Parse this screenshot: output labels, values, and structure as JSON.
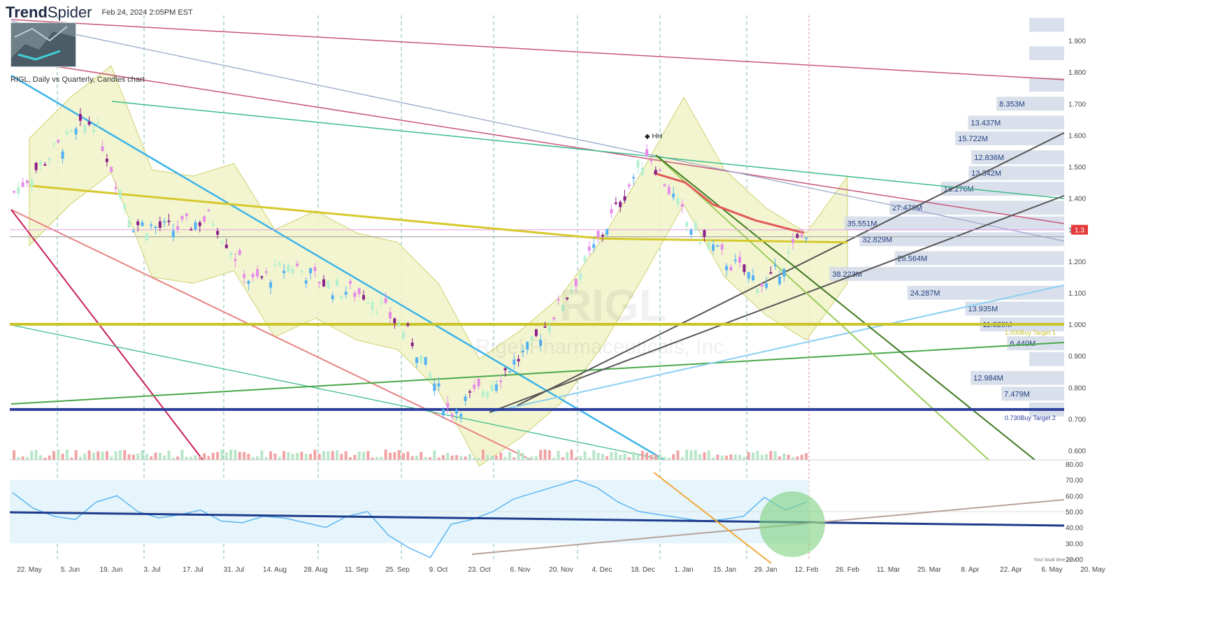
{
  "header": {
    "logo_bold": "Trend",
    "logo_light": "Spider",
    "timestamp": "Feb 24, 2024 2:05PM EST"
  },
  "chart_subtitle": "RIGL, Daily vs Quarterly, Candles chart",
  "watermark": {
    "ticker": "RIGL",
    "company": "Rigel Pharmaceuticals, Inc."
  },
  "last_price_tag": "1.3",
  "local_time_label": "Your local time zone",
  "hh_marker": "HH",
  "chart_data": [
    {
      "type": "candlestick",
      "title": "RIGL, Daily vs Quarterly, Candles chart",
      "x_tick_labels": [
        "22. May",
        "5. Jun",
        "19. Jun",
        "3. Jul",
        "17. Jul",
        "31. Jul",
        "14. Aug",
        "28. Aug",
        "11. Sep",
        "25. Sep",
        "9. Oct",
        "23. Oct",
        "6. Nov",
        "20. Nov",
        "4. Dec",
        "18. Dec",
        "1. Jan",
        "15. Jan",
        "29. Jan",
        "12. Feb",
        "26. Feb",
        "11. Mar",
        "25. Mar",
        "8. Apr",
        "22. Apr",
        "6. May",
        "20. May"
      ],
      "y_tick_labels": [
        "1.900",
        "1.800",
        "1.700",
        "1.600",
        "1.500",
        "1.400",
        "1.300",
        "1.200",
        "1.100",
        "1.000",
        "0.900",
        "0.800",
        "0.700",
        "0.600"
      ],
      "ylim": [
        0.57,
        1.98
      ],
      "close_series_approx": [
        {
          "x": "22. May",
          "y": 1.42
        },
        {
          "x": "5. Jun",
          "y": 1.55
        },
        {
          "x": "19. Jun",
          "y": 1.65
        },
        {
          "x": "3. Jul",
          "y": 1.32
        },
        {
          "x": "17. Jul",
          "y": 1.3
        },
        {
          "x": "31. Jul",
          "y": 1.34
        },
        {
          "x": "14. Aug",
          "y": 1.13
        },
        {
          "x": "28. Aug",
          "y": 1.19
        },
        {
          "x": "11. Sep",
          "y": 1.12
        },
        {
          "x": "25. Sep",
          "y": 1.09
        },
        {
          "x": "9. Oct",
          "y": 0.96
        },
        {
          "x": "23. Oct",
          "y": 0.72
        },
        {
          "x": "6. Nov",
          "y": 0.81
        },
        {
          "x": "20. Nov",
          "y": 0.92
        },
        {
          "x": "4. Dec",
          "y": 1.1
        },
        {
          "x": "18. Dec",
          "y": 1.32
        },
        {
          "x": "1. Jan",
          "y": 1.55
        },
        {
          "x": "15. Jan",
          "y": 1.32
        },
        {
          "x": "29. Jan",
          "y": 1.2
        },
        {
          "x": "12. Feb",
          "y": 1.12
        },
        {
          "x": "26. Feb",
          "y": 1.3
        }
      ],
      "volume_profile": [
        {
          "price": 1.93,
          "label": ""
        },
        {
          "price": 1.84,
          "label": ""
        },
        {
          "price": 1.74,
          "label": ""
        },
        {
          "price": 1.68,
          "label": "8.353M"
        },
        {
          "price": 1.62,
          "label": "13.437M"
        },
        {
          "price": 1.57,
          "label": "15.722M"
        },
        {
          "price": 1.51,
          "label": "12.836M"
        },
        {
          "price": 1.46,
          "label": "13.342M"
        },
        {
          "price": 1.41,
          "label": "18.276M"
        },
        {
          "price": 1.35,
          "label": "27.478M"
        },
        {
          "price": 1.3,
          "label": "35.551M"
        },
        {
          "price": 1.25,
          "label": "32.829M"
        },
        {
          "price": 1.19,
          "label": "26.564M"
        },
        {
          "price": 1.14,
          "label": "38.223M"
        },
        {
          "price": 1.08,
          "label": "24.287M"
        },
        {
          "price": 1.03,
          "label": "13.935M"
        },
        {
          "price": 0.98,
          "label": "11.329M"
        },
        {
          "price": 0.92,
          "label": "6.440M"
        },
        {
          "price": 0.87,
          "label": ""
        },
        {
          "price": 0.81,
          "label": "12.984M"
        },
        {
          "price": 0.76,
          "label": "7.479M"
        },
        {
          "price": 0.71,
          "label": ""
        }
      ],
      "levels": [
        {
          "price": 1.0,
          "label": "1.000Buy Target 1",
          "color": "#c9c42a"
        },
        {
          "price": 0.73,
          "label": "0.730Buy Target 2",
          "color": "#2c3e9c"
        }
      ],
      "current_price": 1.3
    },
    {
      "type": "line",
      "title": "",
      "y_tick_labels": [
        "80.00",
        "70.00",
        "60.00",
        "50.00",
        "40.00",
        "30.00",
        "20.00"
      ],
      "ylim": [
        20,
        80
      ],
      "band": [
        30,
        70
      ],
      "series": [
        {
          "values_approx": [
            62,
            52,
            47,
            45,
            56,
            60,
            50,
            46,
            48,
            51,
            44,
            43,
            47,
            46,
            43,
            40,
            47,
            50,
            35,
            27,
            21,
            42,
            45,
            50,
            58,
            62,
            66,
            70,
            65,
            56,
            50,
            48,
            46,
            44,
            45,
            47,
            59,
            51,
            56
          ]
        }
      ]
    }
  ],
  "colors": {
    "bull": "#54b2f3",
    "bull_light": "#b5f0cf",
    "bear": "#8a1f8a",
    "bear_light": "#e58be8",
    "ma_yellow": "#d6c92d",
    "ma_red": "#e25858",
    "band_fill": "#f2f4c8",
    "profile_fill": "#d3dbe8",
    "rsi_band": "#e5f5fb",
    "rsi_line": "#54b2f3",
    "highlight_circle": "#7fd17f"
  }
}
